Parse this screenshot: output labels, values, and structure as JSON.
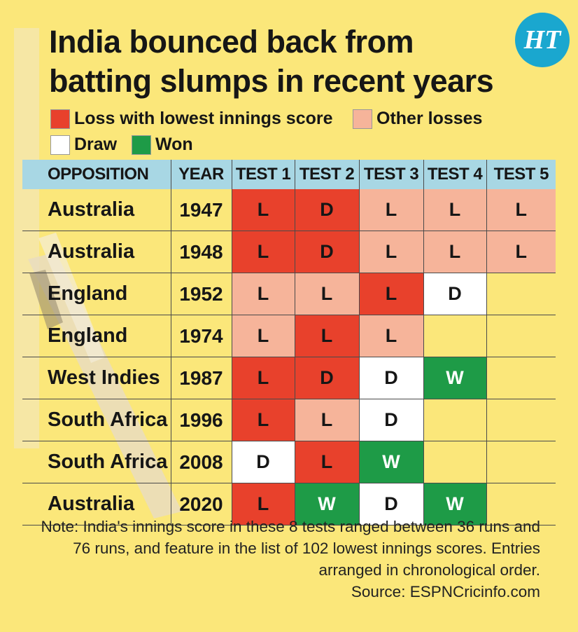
{
  "title_lines": [
    "India bounced back from",
    "batting slumps in recent years"
  ],
  "logo_text": "HT",
  "legend": [
    {
      "label": "Loss with lowest innings score",
      "color": "#e8412c"
    },
    {
      "label": "Other losses",
      "color": "#f6b49a"
    },
    {
      "label": "Draw",
      "color": "#ffffff"
    },
    {
      "label": "Won",
      "color": "#1e9b47"
    }
  ],
  "chart_data": {
    "type": "table",
    "columns": [
      "OPPOSITION",
      "YEAR",
      "TEST 1",
      "TEST 2",
      "TEST 3",
      "TEST 4",
      "TEST 5"
    ],
    "status_legend": {
      "lowest_loss": "Loss with lowest innings score",
      "loss": "Other losses",
      "draw": "Draw",
      "won": "Won"
    },
    "rows": [
      {
        "opposition": "Australia",
        "year": "1947",
        "tests": [
          {
            "result": "L",
            "status": "lowest_loss"
          },
          {
            "result": "D",
            "status": "lowest_loss"
          },
          {
            "result": "L",
            "status": "loss"
          },
          {
            "result": "L",
            "status": "loss"
          },
          {
            "result": "L",
            "status": "loss"
          }
        ]
      },
      {
        "opposition": "Australia",
        "year": "1948",
        "tests": [
          {
            "result": "L",
            "status": "lowest_loss"
          },
          {
            "result": "D",
            "status": "lowest_loss"
          },
          {
            "result": "L",
            "status": "loss"
          },
          {
            "result": "L",
            "status": "loss"
          },
          {
            "result": "L",
            "status": "loss"
          }
        ]
      },
      {
        "opposition": "England",
        "year": "1952",
        "tests": [
          {
            "result": "L",
            "status": "loss"
          },
          {
            "result": "L",
            "status": "loss"
          },
          {
            "result": "L",
            "status": "lowest_loss"
          },
          {
            "result": "D",
            "status": "draw"
          },
          null
        ]
      },
      {
        "opposition": "England",
        "year": "1974",
        "tests": [
          {
            "result": "L",
            "status": "loss"
          },
          {
            "result": "L",
            "status": "lowest_loss"
          },
          {
            "result": "L",
            "status": "loss"
          },
          null,
          null
        ]
      },
      {
        "opposition": "West Indies",
        "year": "1987",
        "tests": [
          {
            "result": "L",
            "status": "lowest_loss"
          },
          {
            "result": "D",
            "status": "lowest_loss"
          },
          {
            "result": "D",
            "status": "draw"
          },
          {
            "result": "W",
            "status": "won"
          },
          null
        ]
      },
      {
        "opposition": "South Africa",
        "year": "1996",
        "tests": [
          {
            "result": "L",
            "status": "lowest_loss"
          },
          {
            "result": "L",
            "status": "loss"
          },
          {
            "result": "D",
            "status": "draw"
          },
          null,
          null
        ]
      },
      {
        "opposition": "South Africa",
        "year": "2008",
        "tests": [
          {
            "result": "D",
            "status": "draw"
          },
          {
            "result": "L",
            "status": "lowest_loss"
          },
          {
            "result": "W",
            "status": "won"
          },
          null,
          null
        ]
      },
      {
        "opposition": "Australia",
        "year": "2020",
        "tests": [
          {
            "result": "L",
            "status": "lowest_loss"
          },
          {
            "result": "W",
            "status": "won"
          },
          {
            "result": "D",
            "status": "draw"
          },
          {
            "result": "W",
            "status": "won"
          },
          null
        ]
      }
    ]
  },
  "note_lines": [
    "Note: India's innings score in these 8 tests ranged between 36 runs and",
    "76 runs, and feature in the list of 102 lowest innings scores. Entries",
    "arranged in chronological order.",
    "Source: ESPNCricinfo.com"
  ]
}
